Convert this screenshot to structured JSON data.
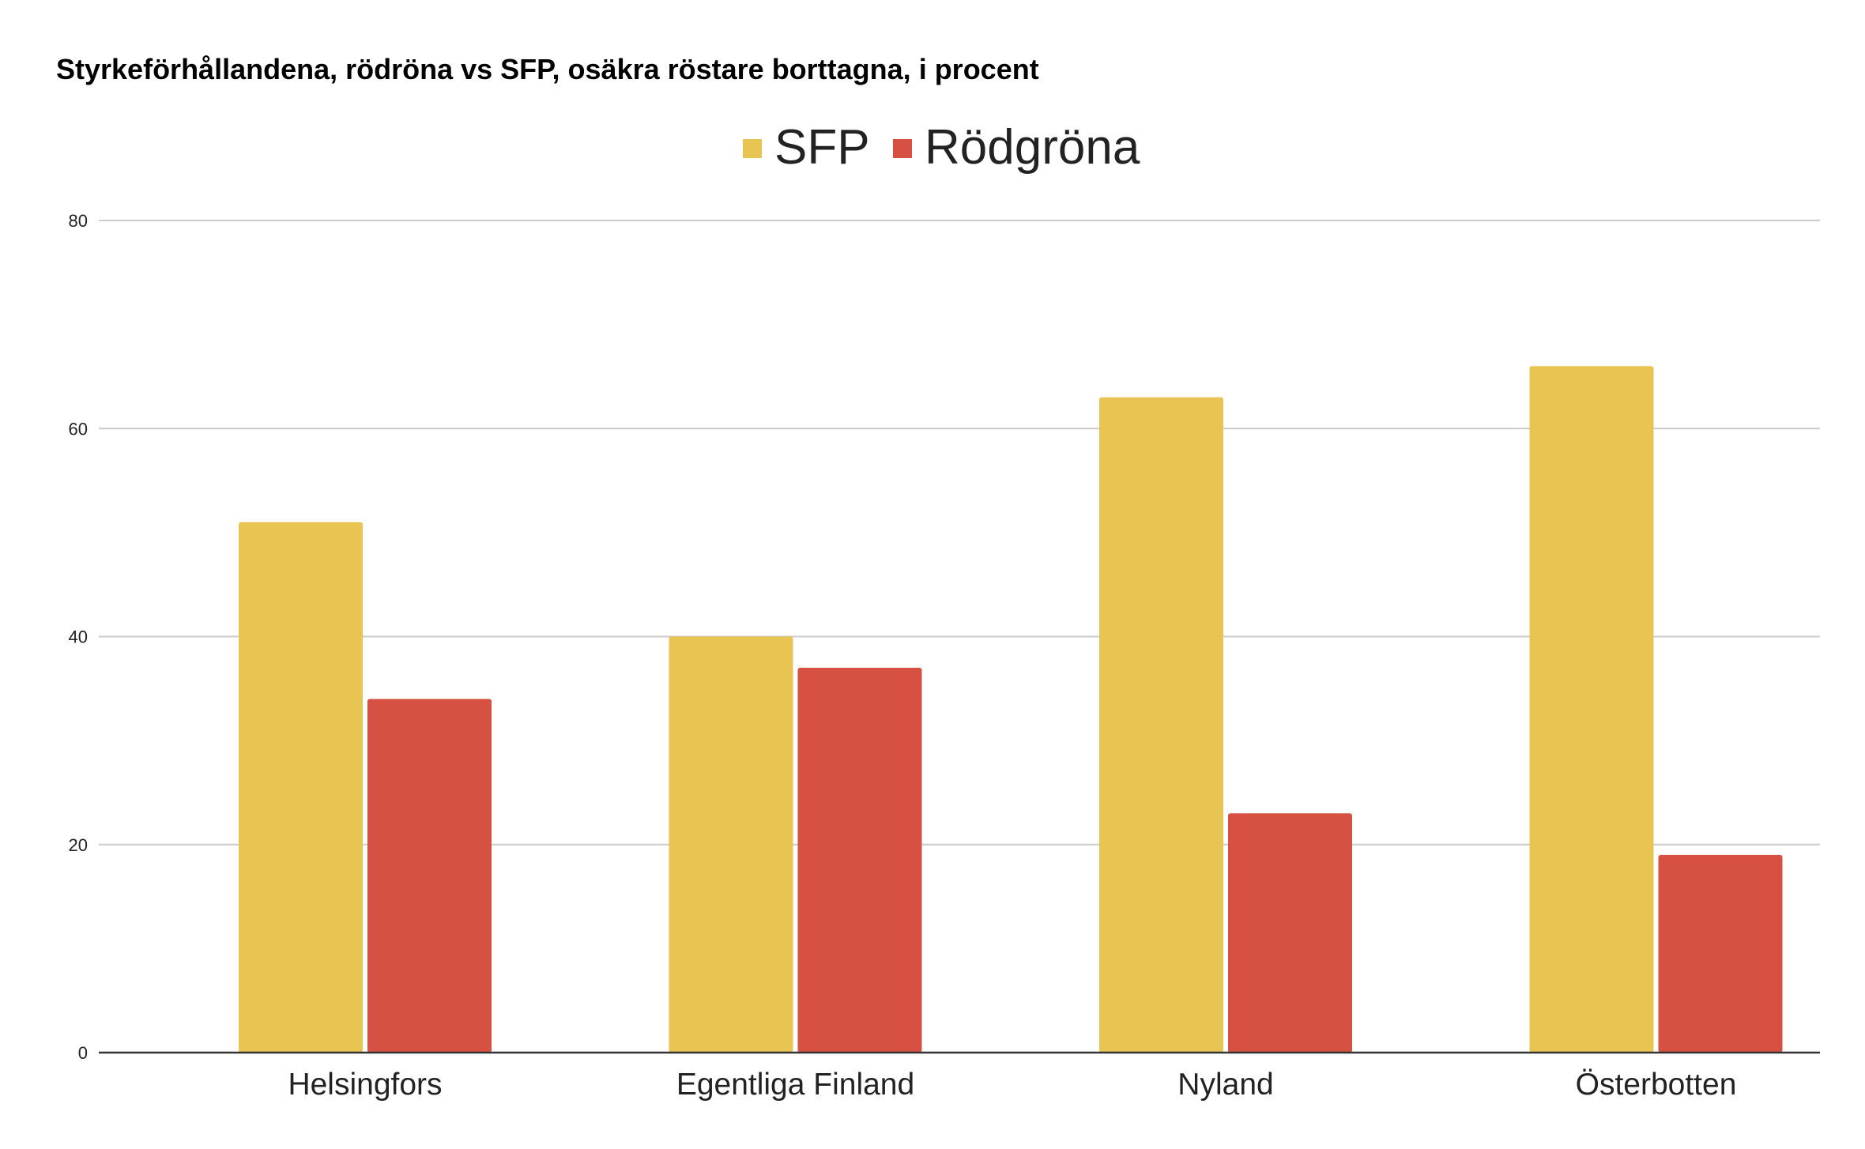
{
  "chart_data": {
    "type": "bar",
    "title": "Styrkeförhållandena, rödröna vs SFP, osäkra röstare borttagna, i procent",
    "categories": [
      "Helsingfors",
      "Egentliga Finland",
      "Nyland",
      "Österbotten"
    ],
    "series": [
      {
        "name": "SFP",
        "color": "#E8C452",
        "values": [
          51,
          40,
          63,
          66
        ]
      },
      {
        "name": "Rödgröna",
        "color": "#D65141",
        "values": [
          34,
          37,
          23,
          19
        ]
      }
    ],
    "ylim": [
      0,
      80
    ],
    "yticks": [
      0,
      20,
      40,
      60,
      80
    ],
    "grid": true,
    "legend_position": "top-center",
    "xlabel": "",
    "ylabel": ""
  }
}
